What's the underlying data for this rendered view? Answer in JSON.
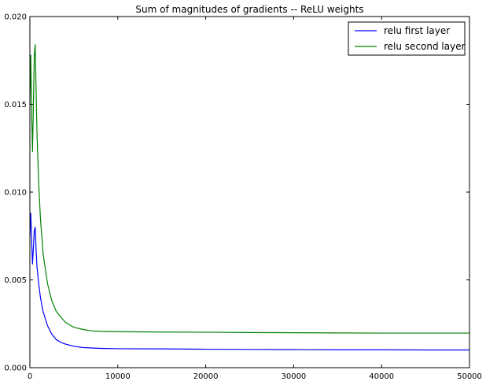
{
  "chart_data": {
    "type": "line",
    "title": "Sum of magnitudes of gradients -- ReLU weights",
    "xlabel": "",
    "ylabel": "",
    "xlim": [
      0,
      50000
    ],
    "ylim": [
      0,
      0.02
    ],
    "x_ticks": [
      0,
      10000,
      20000,
      30000,
      40000,
      50000
    ],
    "x_tick_labels": [
      "0",
      "10000",
      "20000",
      "30000",
      "40000",
      "50000"
    ],
    "y_ticks": [
      0,
      0.005,
      0.01,
      0.015,
      0.02
    ],
    "y_tick_labels": [
      "0.000",
      "0.005",
      "0.010",
      "0.015",
      "0.020"
    ],
    "grid": false,
    "legend_position": "top-right",
    "series": [
      {
        "name": "relu first layer",
        "color": "#0000ff",
        "x": [
          0,
          100,
          200,
          300,
          400,
          500,
          600,
          700,
          800,
          1000,
          1200,
          1500,
          2000,
          2500,
          3000,
          3500,
          4000,
          5000,
          6000,
          7000,
          8000,
          10000,
          15000,
          20000,
          25000,
          30000,
          35000,
          40000,
          45000,
          50000
        ],
        "y": [
          0.0075,
          0.0088,
          0.0072,
          0.0059,
          0.0068,
          0.0078,
          0.008,
          0.0068,
          0.0058,
          0.0048,
          0.004,
          0.0032,
          0.0024,
          0.0019,
          0.0016,
          0.00145,
          0.00135,
          0.00122,
          0.00115,
          0.00112,
          0.0011,
          0.00108,
          0.00107,
          0.00105,
          0.00104,
          0.00103,
          0.00102,
          0.00102,
          0.00101,
          0.00101
        ]
      },
      {
        "name": "relu second layer",
        "color": "#008000",
        "x": [
          0,
          100,
          200,
          300,
          400,
          500,
          600,
          700,
          800,
          1000,
          1200,
          1500,
          2000,
          2500,
          3000,
          3500,
          4000,
          5000,
          6000,
          7000,
          8000,
          10000,
          15000,
          20000,
          25000,
          30000,
          35000,
          40000,
          45000,
          50000
        ],
        "y": [
          0.015,
          0.0178,
          0.0145,
          0.0123,
          0.015,
          0.0178,
          0.0184,
          0.016,
          0.0135,
          0.0105,
          0.0085,
          0.0065,
          0.0048,
          0.0038,
          0.0032,
          0.0029,
          0.0026,
          0.0023,
          0.00218,
          0.0021,
          0.00207,
          0.00205,
          0.00203,
          0.00202,
          0.002,
          0.00199,
          0.00198,
          0.00197,
          0.00197,
          0.00197
        ]
      }
    ]
  }
}
